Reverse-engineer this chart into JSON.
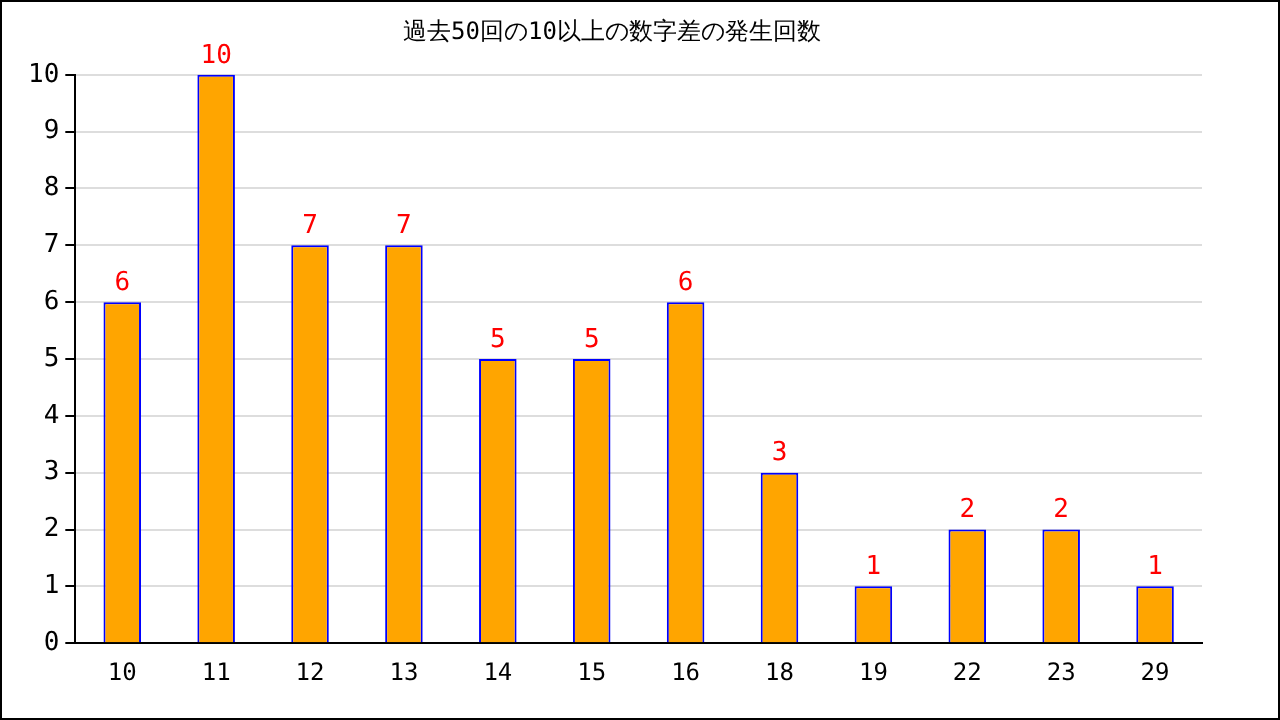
{
  "chart_data": {
    "type": "bar",
    "title": "過去50回の10以上の数字差の発生回数",
    "categories": [
      "10",
      "11",
      "12",
      "13",
      "14",
      "15",
      "16",
      "18",
      "19",
      "22",
      "23",
      "29"
    ],
    "values": [
      6,
      10,
      7,
      7,
      5,
      5,
      6,
      3,
      1,
      2,
      2,
      1
    ],
    "color": "#ffa500",
    "ylim": [
      0,
      10
    ],
    "yticks": [
      0,
      1,
      2,
      3,
      4,
      5,
      6,
      7,
      8,
      9,
      10
    ],
    "grid": "y",
    "data_labels": true,
    "legend": false
  }
}
